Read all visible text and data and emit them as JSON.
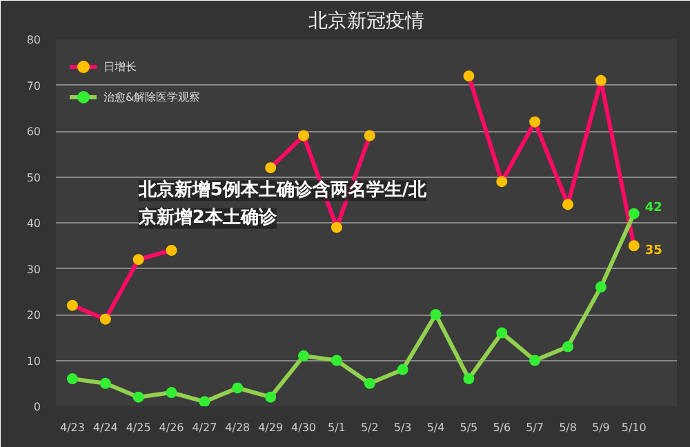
{
  "chart_data": {
    "type": "line",
    "title": "北京新冠疫情",
    "categories": [
      "4/23",
      "4/24",
      "4/25",
      "4/26",
      "4/27",
      "4/28",
      "4/29",
      "4/30",
      "5/1",
      "5/2",
      "5/3",
      "5/4",
      "5/5",
      "5/6",
      "5/7",
      "5/8",
      "5/9",
      "5/10"
    ],
    "series": [
      {
        "name": "日增长",
        "color": "#ff0a64",
        "values": [
          22,
          19,
          32,
          34,
          null,
          null,
          52,
          59,
          39,
          59,
          null,
          null,
          72,
          49,
          62,
          44,
          71,
          35
        ],
        "value_labels": [
          null,
          null,
          null,
          null,
          null,
          null,
          null,
          null,
          null,
          null,
          null,
          null,
          null,
          null,
          null,
          null,
          null,
          "35"
        ]
      },
      {
        "name": "治愈&解除医学观察",
        "color": "#92d050",
        "values": [
          6,
          5,
          2,
          3,
          1,
          4,
          2,
          11,
          10,
          5,
          8,
          20,
          6,
          16,
          10,
          13,
          26,
          42
        ],
        "value_labels": [
          null,
          null,
          null,
          null,
          null,
          null,
          null,
          null,
          null,
          null,
          null,
          null,
          null,
          null,
          null,
          null,
          null,
          "42"
        ]
      }
    ],
    "ylim": [
      0,
      80
    ],
    "yticks": [
      0,
      10,
      20,
      30,
      40,
      50,
      60,
      70,
      80
    ],
    "grid": "y",
    "legend": "top left",
    "marker": "circle",
    "annotations": [
      "北京新增5例本土确诊含两名学生/北京新增2本土确诊"
    ]
  }
}
